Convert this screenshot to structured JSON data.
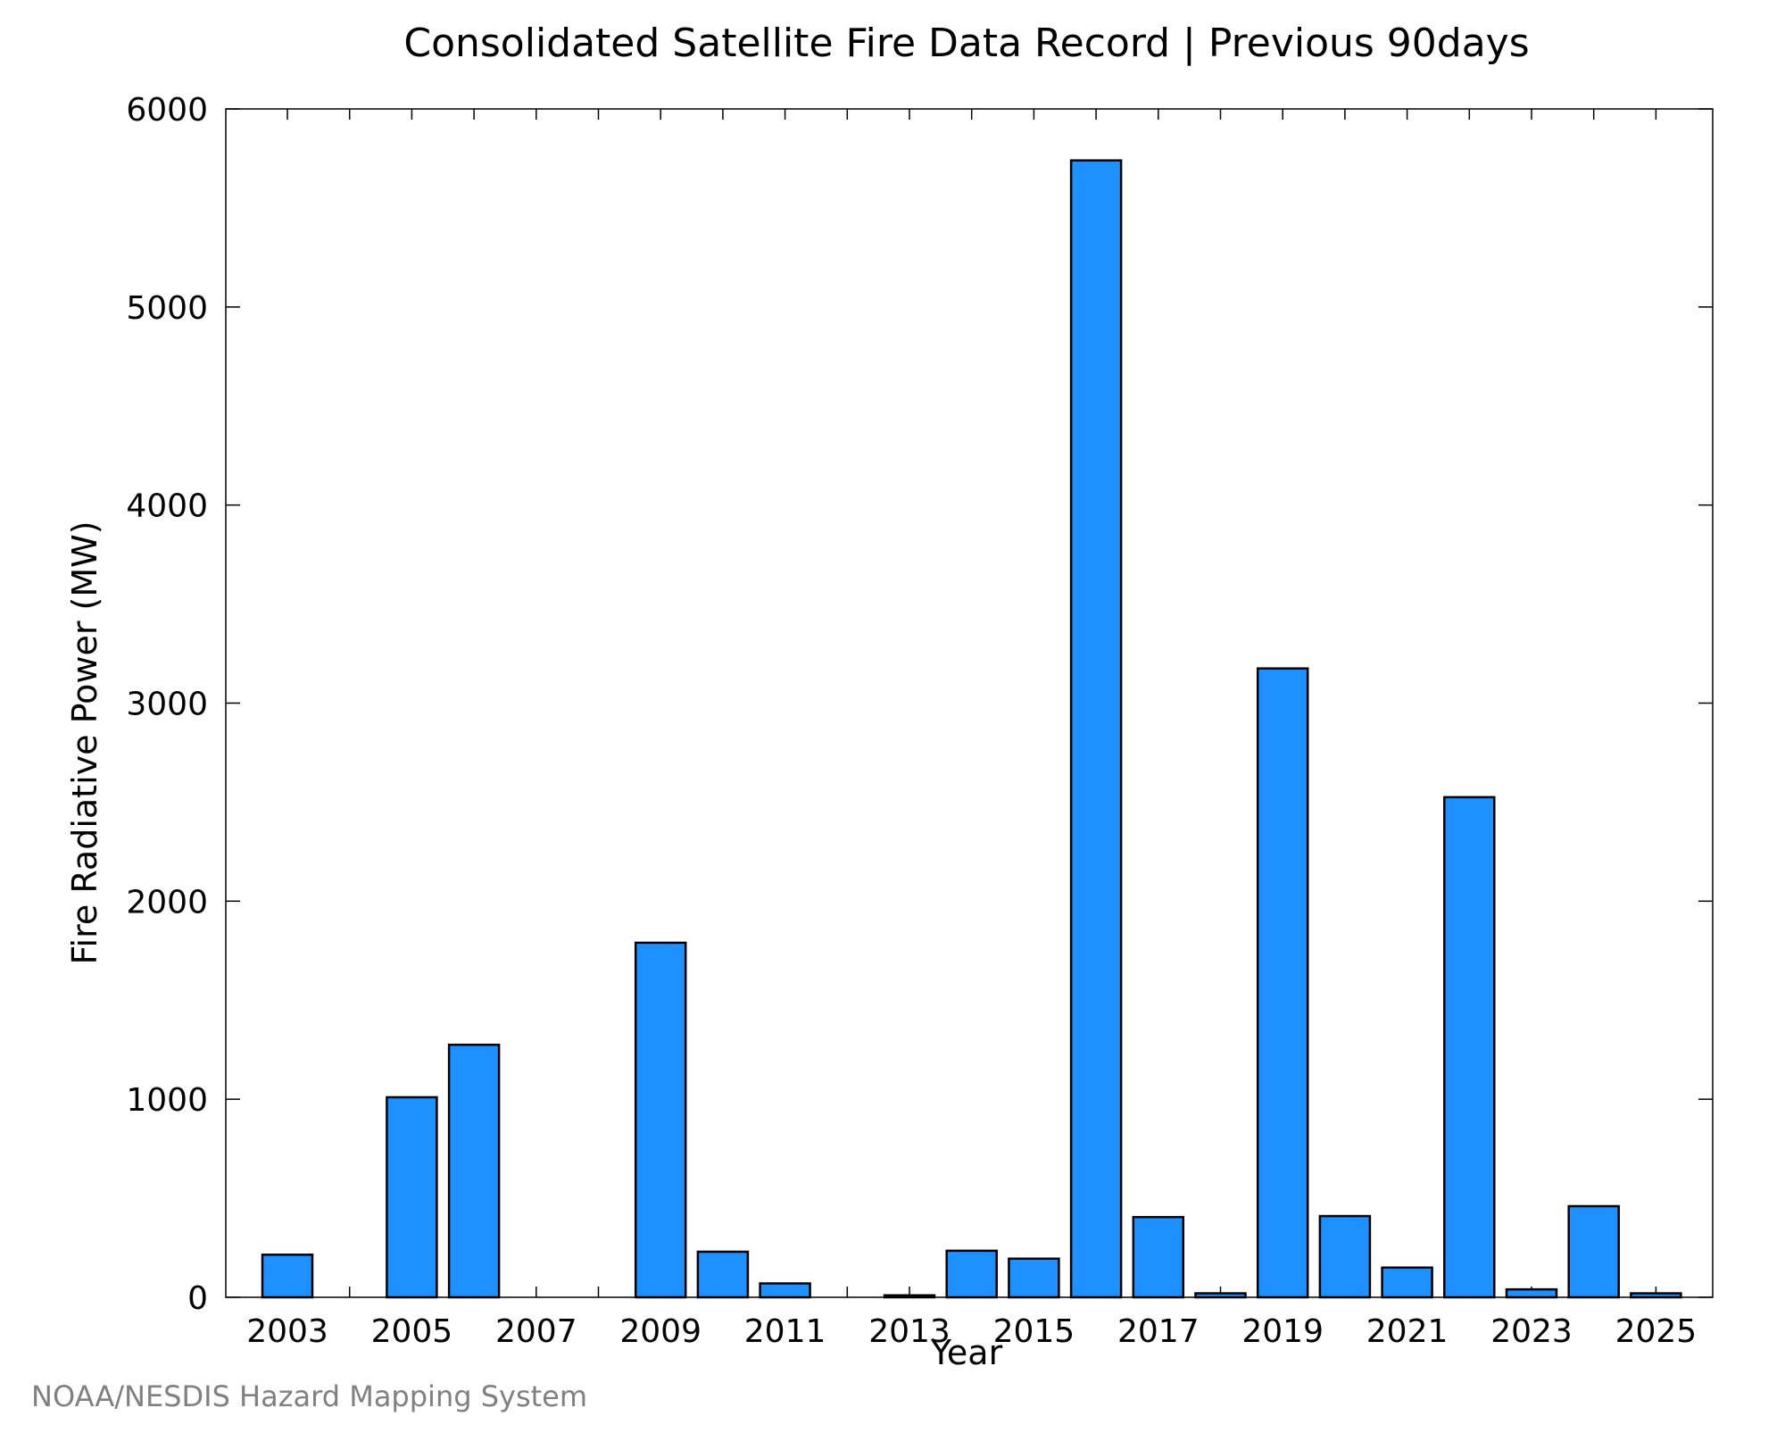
{
  "chart_data": {
    "type": "bar",
    "title": "Consolidated Satellite Fire Data Record | Previous 90days",
    "xlabel": "Year",
    "ylabel": "Fire Radiative Power (MW)",
    "categories": [
      "2003",
      "2004",
      "2005",
      "2006",
      "2007",
      "2008",
      "2009",
      "2010",
      "2011",
      "2012",
      "2013",
      "2014",
      "2015",
      "2016",
      "2017",
      "2018",
      "2019",
      "2020",
      "2021",
      "2022",
      "2023",
      "2024",
      "2025"
    ],
    "values": [
      215,
      0,
      1010,
      1275,
      0,
      0,
      1790,
      230,
      70,
      0,
      10,
      235,
      195,
      5740,
      405,
      20,
      3175,
      410,
      150,
      2525,
      40,
      460,
      20
    ],
    "ylim": [
      0,
      6000
    ],
    "yticks": [
      0,
      1000,
      2000,
      3000,
      4000,
      5000,
      6000
    ],
    "xticks": [
      "2003",
      "2005",
      "2007",
      "2009",
      "2011",
      "2013",
      "2015",
      "2017",
      "2019",
      "2021",
      "2023",
      "2025"
    ],
    "bar_color": "#1e90ff",
    "grid": false,
    "credit": "NOAA/NESDIS Hazard Mapping System"
  }
}
